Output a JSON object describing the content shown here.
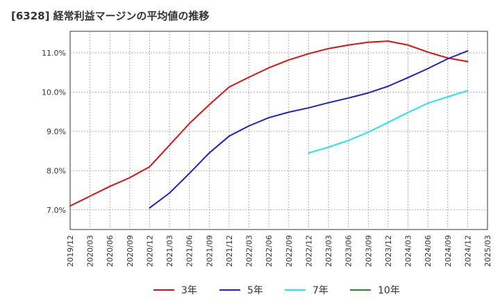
{
  "chart_data": {
    "type": "line",
    "title": "[6328]  経常利益マージンの平均値の推移",
    "y_tick_labels": [
      "7.0%",
      "8.0%",
      "9.0%",
      "10.0%",
      "11.0%"
    ],
    "y_ticks": [
      7.0,
      8.0,
      9.0,
      10.0,
      11.0
    ],
    "ylim": [
      6.5,
      11.55
    ],
    "x_tick_labels": [
      "2019/12",
      "2020/03",
      "2020/06",
      "2020/09",
      "2020/12",
      "2021/03",
      "2021/06",
      "2021/09",
      "2021/12",
      "2022/03",
      "2022/06",
      "2022/09",
      "2022/12",
      "2023/03",
      "2023/06",
      "2023/09",
      "2023/12",
      "2024/03",
      "2024/06",
      "2024/09",
      "2024/12",
      "2025/03"
    ],
    "grid": true,
    "legend_position": "bottom",
    "series": [
      {
        "name": "3年",
        "color": "#dd1111",
        "values": [
          7.1,
          7.35,
          7.6,
          7.82,
          8.1,
          8.65,
          9.2,
          9.68,
          10.13,
          10.38,
          10.62,
          10.82,
          10.98,
          11.11,
          11.2,
          11.27,
          11.3,
          11.2,
          11.02,
          10.87,
          10.78,
          null
        ]
      },
      {
        "name": "5年",
        "color": "#1c22c6",
        "values": [
          null,
          null,
          null,
          null,
          7.05,
          7.43,
          7.93,
          8.45,
          8.88,
          9.14,
          9.35,
          9.49,
          9.6,
          9.73,
          9.85,
          9.98,
          10.15,
          10.37,
          10.6,
          10.85,
          11.05,
          null
        ]
      },
      {
        "name": "7年",
        "color": "#22e6ee",
        "values": [
          null,
          null,
          null,
          null,
          null,
          null,
          null,
          null,
          null,
          null,
          null,
          null,
          8.45,
          8.6,
          8.77,
          8.98,
          9.23,
          9.48,
          9.72,
          9.88,
          10.04,
          null
        ]
      },
      {
        "name": "10年",
        "color": "#228b22",
        "values": [
          null,
          null,
          null,
          null,
          null,
          null,
          null,
          null,
          null,
          null,
          null,
          null,
          null,
          null,
          null,
          null,
          null,
          null,
          null,
          null,
          null,
          null
        ]
      }
    ]
  }
}
